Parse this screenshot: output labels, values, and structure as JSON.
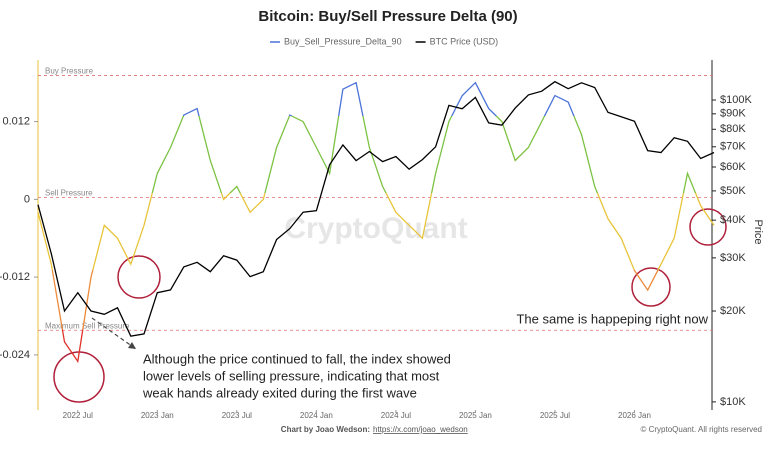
{
  "chart_data": {
    "type": "line",
    "title": "Bitcoin: Buy/Sell Pressure Delta (90)",
    "y2_label": "Price",
    "watermark": "CryptoQuant",
    "footer_credit": "Chart by Joao Wedson:",
    "footer_link": "https://x.com/joao_wedson",
    "copyright": "© CryptoQuant. All rights reserved",
    "annotations": [
      "The same is happeping right now",
      "Although the price continued to fall, the index showed",
      "lower levels of selling pressure, indicating that most",
      "weak hands already exited during the first wave"
    ],
    "reference_lines": [
      {
        "value": 0.0191,
        "label": "Buy Pressure"
      },
      {
        "value": 0.0003,
        "label": "Sell Pressure"
      },
      {
        "value": -0.0202,
        "label": "Maximum Sell Pressure"
      }
    ],
    "x": [
      "2022-04",
      "2022-05",
      "2022-06",
      "2022-07",
      "2022-08",
      "2022-09",
      "2022-10",
      "2022-11",
      "2022-12",
      "2023-01",
      "2023-02",
      "2023-03",
      "2023-04",
      "2023-05",
      "2023-06",
      "2023-07",
      "2023-08",
      "2023-09",
      "2023-10",
      "2023-11",
      "2023-12",
      "2024-01",
      "2024-02",
      "2024-03",
      "2024-04",
      "2024-05",
      "2024-06",
      "2024-07",
      "2024-08",
      "2024-09",
      "2024-10",
      "2024-11",
      "2024-12",
      "2025-01",
      "2025-02",
      "2025-03",
      "2025-04",
      "2025-05",
      "2025-06",
      "2025-07",
      "2025-08",
      "2025-09",
      "2025-10",
      "2025-11",
      "2025-12",
      "2026-01",
      "2026-02",
      "2026-03",
      "2026-04",
      "2026-05",
      "2026-06",
      "2026-07"
    ],
    "xlim": [
      "2022-04",
      "2026-07"
    ],
    "xticks": [
      {
        "value": "2022-07",
        "label": "2022 Jul"
      },
      {
        "value": "2023-01",
        "label": "2023 Jan"
      },
      {
        "value": "2023-07",
        "label": "2023 Jul"
      },
      {
        "value": "2024-01",
        "label": "2024 Jan"
      },
      {
        "value": "2024-07",
        "label": "2024 Jul"
      },
      {
        "value": "2025-01",
        "label": "2025 Jan"
      },
      {
        "value": "2025-07",
        "label": "2025 Jul"
      },
      {
        "value": "2026-01",
        "label": "2026 Jan"
      }
    ],
    "ylim": [
      -0.0325,
      0.0215
    ],
    "yticks": [
      -0.024,
      -0.012,
      0,
      0.012
    ],
    "y2lim": [
      9400,
      135700
    ],
    "y2scale": "log",
    "y2ticks": [
      {
        "value": 10000,
        "label": "$10K"
      },
      {
        "value": 20000,
        "label": "$20K"
      },
      {
        "value": 30000,
        "label": "$30K"
      },
      {
        "value": 40000,
        "label": "$40K"
      },
      {
        "value": 50000,
        "label": "$50K"
      },
      {
        "value": 60000,
        "label": "$60K"
      },
      {
        "value": 70000,
        "label": "$70K"
      },
      {
        "value": 80000,
        "label": "$80K"
      },
      {
        "value": 90000,
        "label": "$90K"
      },
      {
        "value": 100000,
        "label": "$100K"
      }
    ],
    "series": [
      {
        "name": "Buy_Sell_Pressure_Delta_90",
        "color": "#4a72d8",
        "values": [
          -0.002,
          -0.01,
          -0.022,
          -0.025,
          -0.012,
          -0.004,
          -0.006,
          -0.01,
          -0.004,
          0.004,
          0.008,
          0.013,
          0.014,
          0.006,
          0.0,
          0.002,
          -0.002,
          0.0,
          0.008,
          0.013,
          0.012,
          0.008,
          0.004,
          0.017,
          0.018,
          0.008,
          0.002,
          -0.002,
          -0.004,
          -0.006,
          0.004,
          0.012,
          0.016,
          0.018,
          0.014,
          0.012,
          0.006,
          0.008,
          0.012,
          0.016,
          0.015,
          0.01,
          0.002,
          -0.003,
          -0.006,
          -0.011,
          -0.014,
          -0.01,
          -0.006,
          0.004,
          -0.001,
          -0.004
        ]
      },
      {
        "name": "BTC Price (USD)",
        "color": "#000000",
        "axis": "y2",
        "values": [
          45000,
          31000,
          20000,
          23000,
          20000,
          19500,
          20500,
          16500,
          16800,
          23000,
          23500,
          28000,
          29000,
          27000,
          30500,
          29500,
          26000,
          27000,
          34500,
          37500,
          42500,
          43000,
          61000,
          71000,
          63000,
          67500,
          62500,
          65000,
          59000,
          63500,
          70000,
          96000,
          93500,
          102000,
          84000,
          82500,
          94000,
          104000,
          107000,
          115000,
          109000,
          114000,
          110000,
          91000,
          88000,
          85000,
          68000,
          67000,
          75000,
          73000,
          64000,
          67000
        ]
      }
    ]
  }
}
